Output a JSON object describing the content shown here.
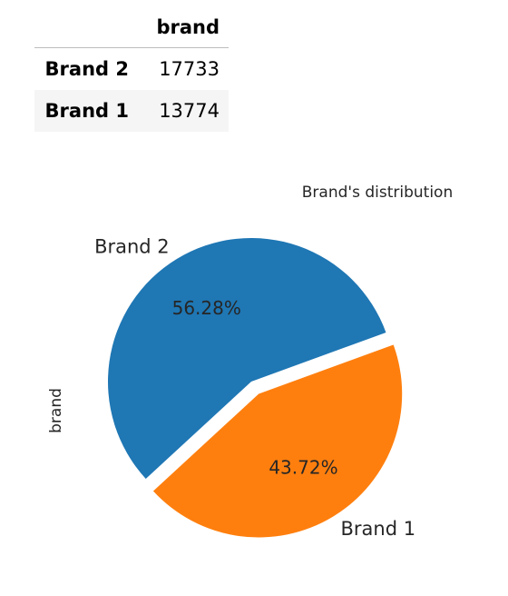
{
  "table": {
    "header": [
      "",
      "brand"
    ],
    "rows": [
      {
        "index": "Brand 2",
        "value": "17733"
      },
      {
        "index": "Brand 1",
        "value": "13774"
      }
    ]
  },
  "chart_data": {
    "type": "pie",
    "title": "Brand's distribution",
    "ylabel": "brand",
    "slices": [
      {
        "label": "Brand 2",
        "value": 17733,
        "pct_label": "56.28%",
        "color": "#1f77b4",
        "explode": 0
      },
      {
        "label": "Brand 1",
        "value": 13774,
        "pct_label": "43.72%",
        "color": "#ff7f0e",
        "explode": 0.1
      }
    ],
    "legend": false
  }
}
